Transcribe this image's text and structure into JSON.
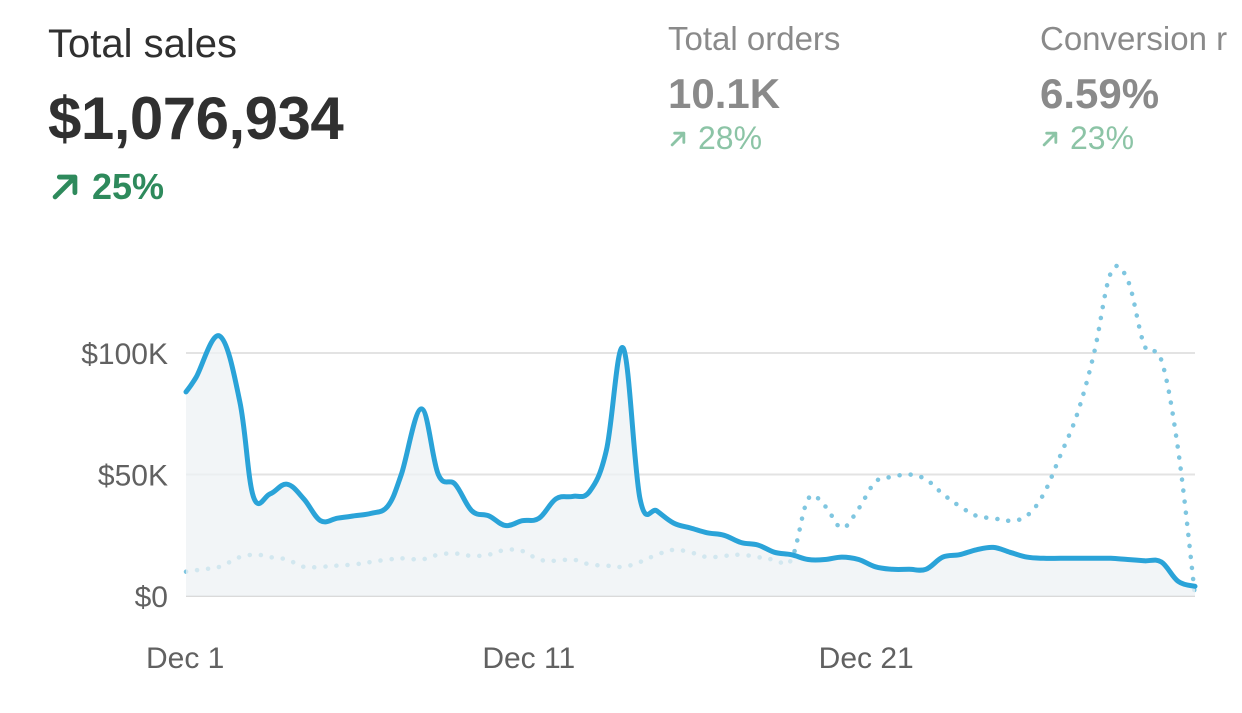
{
  "metrics": [
    {
      "id": "total-sales",
      "label": "Total sales",
      "value": "$1,076,934",
      "change": "25%",
      "direction": "up",
      "active": true
    },
    {
      "id": "total-orders",
      "label": "Total orders",
      "value": "10.1K",
      "change": "28%",
      "direction": "up",
      "active": false
    },
    {
      "id": "conversion-rate",
      "label": "Conversion r",
      "value": "6.59%",
      "change": "23%",
      "direction": "up",
      "active": false
    }
  ],
  "colors": {
    "current_series": "#2aa3d8",
    "comparison_series": "#7fc6e0",
    "positive": "#2e8a5c",
    "positive_muted": "#8cc4a6",
    "grid": "#e3e3e3"
  },
  "chart_data": {
    "type": "line",
    "title": "",
    "xlabel": "",
    "ylabel": "",
    "ylim": [
      0,
      100000
    ],
    "grid": true,
    "y_ticks": [
      {
        "value": 0,
        "label": "$0"
      },
      {
        "value": 50000,
        "label": "$50K"
      },
      {
        "value": 100000,
        "label": "$100K"
      }
    ],
    "x_domain": [
      1,
      31
    ],
    "x_ticks": [
      {
        "value": 1,
        "label": "Dec 1"
      },
      {
        "value": 11,
        "label": "Dec 11"
      },
      {
        "value": 21,
        "label": "Dec 21"
      }
    ],
    "series": [
      {
        "style": "solid-area",
        "x": [
          1,
          1.3,
          2,
          2.6,
          3,
          3.5,
          4,
          4.5,
          5,
          5.5,
          6,
          6.5,
          7,
          7.4,
          8,
          8.5,
          9,
          9.5,
          10,
          10.5,
          11,
          11.5,
          12,
          12.5,
          13,
          13.5,
          14,
          14.5,
          15,
          15.5,
          16,
          16.5,
          17,
          17.5,
          18,
          18.5,
          19,
          19.5,
          20,
          20.5,
          21,
          21.5,
          22,
          22.5,
          23,
          23.5,
          24,
          24.5,
          25,
          25.5,
          26,
          26.5,
          27,
          27.5,
          28,
          28.5,
          29,
          29.5,
          30,
          30.5,
          31
        ],
        "values": [
          84000,
          90000,
          107000,
          80000,
          41000,
          42000,
          46000,
          40000,
          31000,
          32000,
          33000,
          34000,
          37000,
          50000,
          77000,
          50000,
          46000,
          35000,
          33000,
          29000,
          31000,
          32000,
          40000,
          41000,
          43000,
          60000,
          102000,
          40000,
          35000,
          30000,
          28000,
          26000,
          25000,
          22000,
          21000,
          18000,
          17000,
          15000,
          15000,
          16000,
          15000,
          12000,
          11000,
          11000,
          11000,
          16000,
          17000,
          19000,
          20000,
          18000,
          16000,
          15500,
          15500,
          15500,
          15500,
          15500,
          15000,
          14500,
          14000,
          6000,
          4000
        ]
      },
      {
        "style": "dotted",
        "x": [
          1,
          1.5,
          2,
          2.6,
          3.1,
          3.5,
          4,
          4.5,
          5,
          5.5,
          6,
          6.5,
          7,
          7.5,
          8,
          8.5,
          9,
          9.5,
          10,
          10.5,
          11,
          11.5,
          12,
          12.5,
          13,
          13.5,
          14,
          14.5,
          15,
          15.5,
          16,
          16.5,
          17,
          17.5,
          18,
          18.5,
          19,
          19.5,
          20,
          20.5,
          21,
          21.5,
          22,
          22.5,
          23,
          23.5,
          24,
          24.5,
          25,
          25.5,
          26,
          26.5,
          27,
          27.5,
          28,
          28.5,
          29,
          29.5,
          30,
          30.5,
          31
        ],
        "values": [
          10000,
          11000,
          12000,
          16000,
          17000,
          16000,
          15000,
          12000,
          12000,
          12500,
          13000,
          14000,
          15000,
          15500,
          15000,
          17000,
          17500,
          16500,
          17000,
          19000,
          18500,
          15000,
          14500,
          15000,
          13000,
          12500,
          12000,
          14000,
          17000,
          19000,
          18000,
          16000,
          16500,
          17000,
          16000,
          15000,
          15000,
          40000,
          37000,
          28000,
          36000,
          47000,
          49000,
          50000,
          48000,
          42000,
          37000,
          33000,
          32000,
          31000,
          33000,
          42000,
          58000,
          75000,
          100000,
          133000,
          130000,
          103000,
          97000,
          60000,
          0
        ]
      }
    ]
  }
}
